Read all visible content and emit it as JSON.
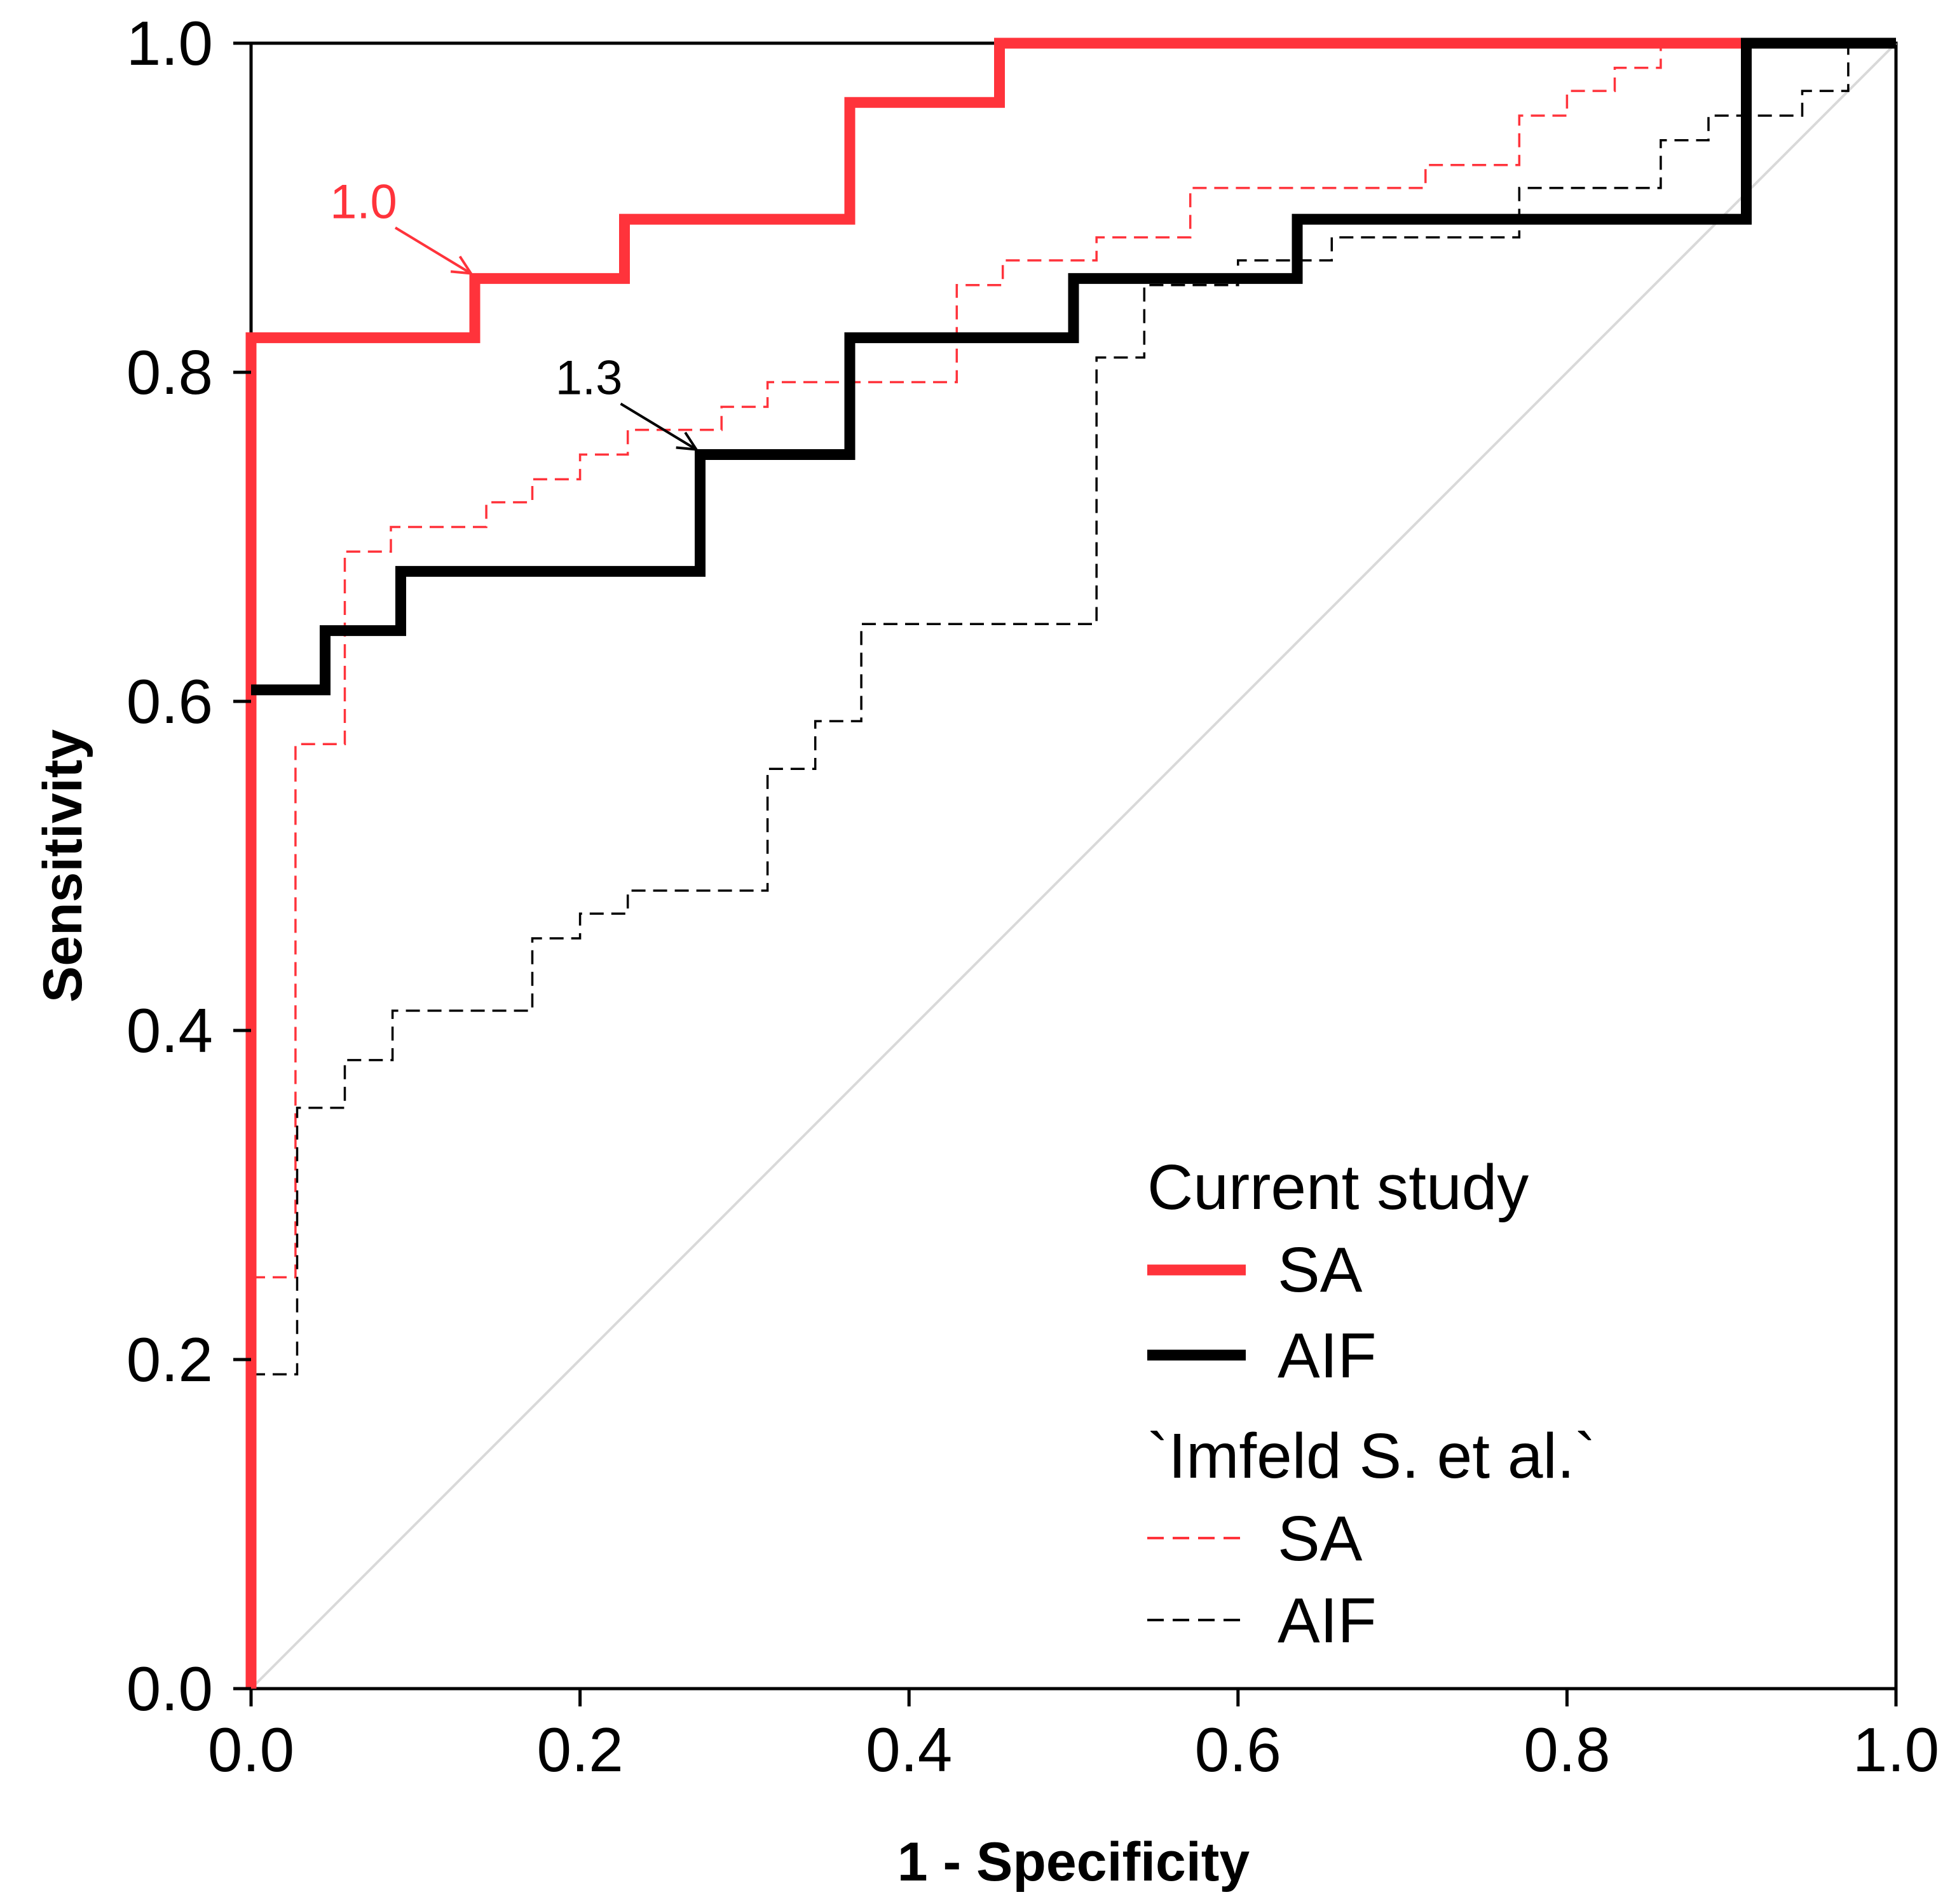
{
  "chart_data": {
    "type": "line",
    "title": "",
    "xlabel": "1 - Specificity",
    "ylabel": "Sensitivity",
    "xlim": [
      0,
      1
    ],
    "ylim": [
      0,
      1
    ],
    "xticks": [
      "0.0",
      "0.2",
      "0.4",
      "0.6",
      "0.8",
      "1.0"
    ],
    "yticks": [
      "0.0",
      "0.2",
      "0.4",
      "0.6",
      "0.8",
      "1.0"
    ],
    "grid": false,
    "legend_position": "bottom-right",
    "colors": {
      "red": "#ff333b",
      "black": "#000000",
      "diagonal": "#d9d9d9"
    },
    "legend": {
      "group1_title": "Current study",
      "group2_title": "`Imfeld S. et al.`",
      "entries": [
        {
          "label": "SA",
          "series": "current_sa"
        },
        {
          "label": "AIF",
          "series": "current_aif"
        },
        {
          "label": "SA",
          "series": "imfeld_sa"
        },
        {
          "label": "AIF",
          "series": "imfeld_aif"
        }
      ]
    },
    "series": [
      {
        "key": "current_sa",
        "name": "SA",
        "group": "Current study",
        "color": "#ff333b",
        "style": "solid-thick",
        "x": [
          0.0,
          0.0,
          0.136,
          0.136,
          0.227,
          0.227,
          0.364,
          0.364,
          0.455,
          0.455,
          1.0
        ],
        "y": [
          0.0,
          0.821,
          0.821,
          0.857,
          0.857,
          0.893,
          0.893,
          0.964,
          0.964,
          1.0,
          1.0
        ]
      },
      {
        "key": "current_aif",
        "name": "AIF",
        "group": "Current study",
        "color": "#000000",
        "style": "solid-thick",
        "x": [
          0.0,
          0.045,
          0.045,
          0.091,
          0.091,
          0.273,
          0.273,
          0.364,
          0.364,
          0.5,
          0.5,
          0.636,
          0.636,
          0.909,
          0.909,
          1.0
        ],
        "y": [
          0.607,
          0.607,
          0.643,
          0.643,
          0.679,
          0.679,
          0.75,
          0.75,
          0.821,
          0.821,
          0.857,
          0.857,
          0.893,
          0.893,
          1.0,
          1.0
        ]
      },
      {
        "key": "imfeld_sa",
        "name": "SA",
        "group": "`Imfeld S. et al.`",
        "color": "#ff333b",
        "style": "dashed-thin",
        "x": [
          0.0,
          0.027,
          0.027,
          0.057,
          0.057,
          0.085,
          0.085,
          0.143,
          0.143,
          0.171,
          0.171,
          0.2,
          0.2,
          0.229,
          0.229,
          0.286,
          0.286,
          0.314,
          0.314,
          0.429,
          0.429,
          0.457,
          0.457,
          0.514,
          0.514,
          0.571,
          0.571,
          0.714,
          0.714,
          0.771,
          0.771,
          0.8,
          0.8,
          0.829,
          0.829,
          0.857,
          0.857,
          0.886,
          0.886,
          0.914,
          0.914,
          1.0
        ],
        "y": [
          0.25,
          0.25,
          0.574,
          0.574,
          0.691,
          0.691,
          0.706,
          0.706,
          0.721,
          0.721,
          0.735,
          0.735,
          0.75,
          0.75,
          0.765,
          0.765,
          0.779,
          0.779,
          0.794,
          0.794,
          0.853,
          0.853,
          0.868,
          0.868,
          0.882,
          0.882,
          0.912,
          0.912,
          0.926,
          0.926,
          0.956,
          0.956,
          0.971,
          0.971,
          0.985,
          0.985,
          1.0,
          1.0,
          1.0,
          1.0,
          1.0,
          1.0
        ]
      },
      {
        "key": "imfeld_aif",
        "name": "AIF",
        "group": "`Imfeld S. et al.`",
        "color": "#000000",
        "style": "dashed-thin",
        "x": [
          0.0,
          0.028,
          0.028,
          0.057,
          0.057,
          0.086,
          0.086,
          0.171,
          0.171,
          0.2,
          0.2,
          0.229,
          0.229,
          0.314,
          0.314,
          0.343,
          0.343,
          0.371,
          0.371,
          0.514,
          0.514,
          0.543,
          0.543,
          0.571,
          0.571,
          0.6,
          0.6,
          0.657,
          0.657,
          0.771,
          0.771,
          0.857,
          0.857,
          0.886,
          0.886,
          0.914,
          0.914,
          0.943,
          0.943,
          0.971,
          0.971,
          1.0
        ],
        "y": [
          0.191,
          0.191,
          0.353,
          0.353,
          0.382,
          0.382,
          0.412,
          0.412,
          0.456,
          0.456,
          0.471,
          0.471,
          0.485,
          0.485,
          0.559,
          0.559,
          0.588,
          0.588,
          0.647,
          0.647,
          0.809,
          0.809,
          0.853,
          0.853,
          0.853,
          0.853,
          0.868,
          0.868,
          0.882,
          0.882,
          0.912,
          0.912,
          0.941,
          0.941,
          0.956,
          0.956,
          0.956,
          0.956,
          0.971,
          0.971,
          1.0,
          1.0
        ]
      },
      {
        "key": "reference",
        "name": "",
        "color": "#d9d9d9",
        "style": "solid-thin",
        "x": [
          0.0,
          1.0
        ],
        "y": [
          0.0,
          1.0
        ]
      }
    ],
    "annotations": [
      {
        "text": "1.0",
        "x": 0.136,
        "y": 0.857,
        "color": "#ff333b"
      },
      {
        "text": "1.3",
        "x": 0.273,
        "y": 0.75,
        "color": "#000000"
      }
    ]
  }
}
